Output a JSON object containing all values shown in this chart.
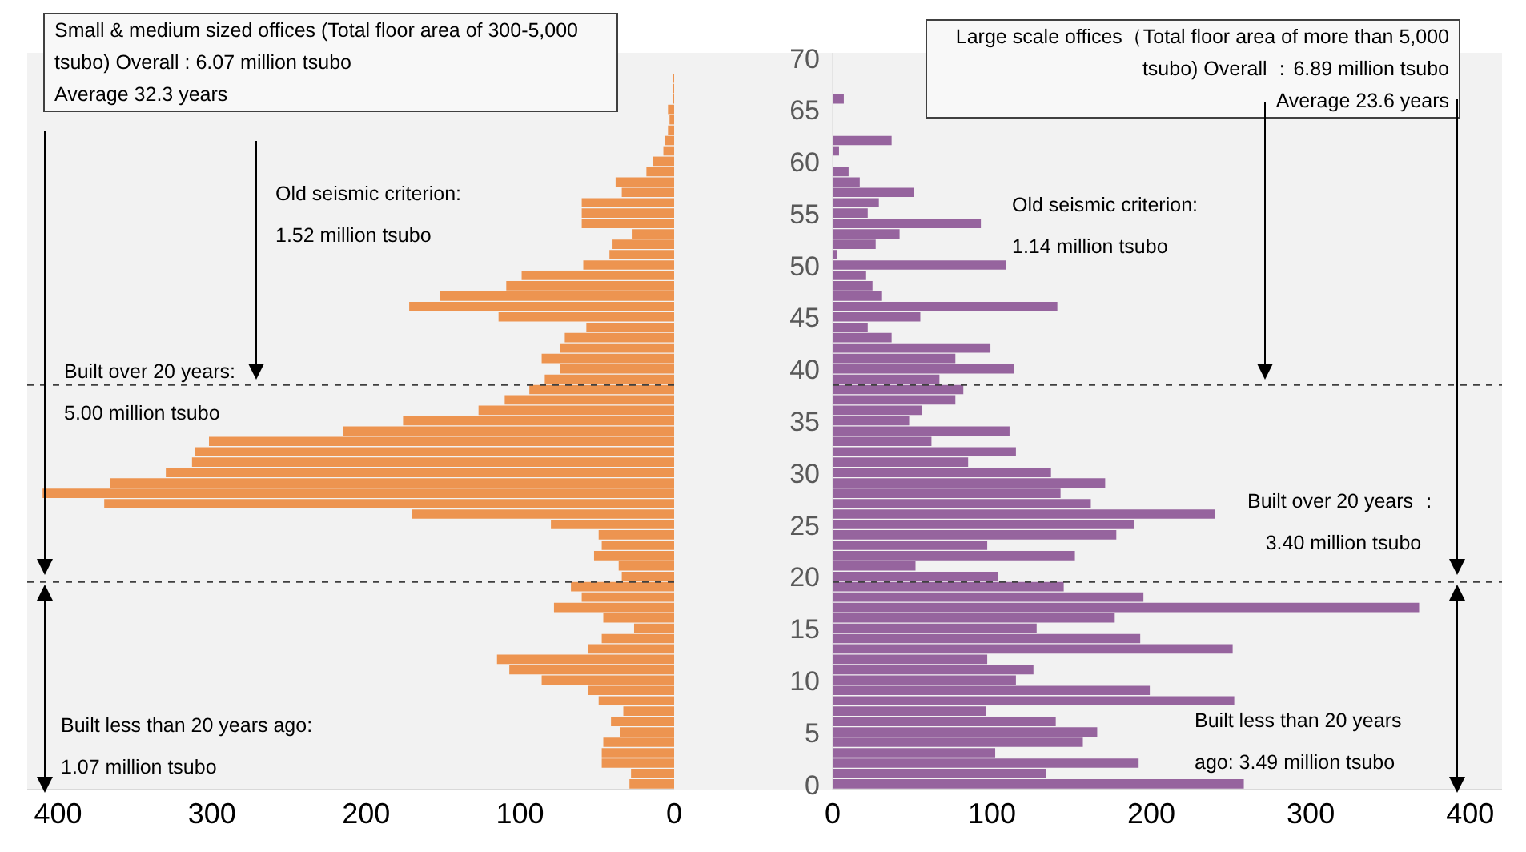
{
  "chart_data": [
    {
      "type": "bar",
      "orientation": "horizontal",
      "title": "Small & medium sized offices (Total floor area of 300-5,000 tsubo) Overall : 6.07 million tsubo",
      "subtitle": "Average 32.3 years",
      "x": [
        0,
        1,
        2,
        3,
        4,
        5,
        6,
        7,
        8,
        9,
        10,
        11,
        12,
        13,
        14,
        15,
        16,
        17,
        18,
        19,
        20,
        21,
        22,
        23,
        24,
        25,
        26,
        27,
        28,
        29,
        30,
        31,
        32,
        33,
        34,
        35,
        36,
        37,
        38,
        39,
        40,
        41,
        42,
        43,
        44,
        45,
        46,
        47,
        48,
        49,
        50,
        51,
        52,
        53,
        54,
        55,
        56,
        57,
        58,
        59,
        60,
        61,
        62,
        63,
        64,
        65,
        66,
        67,
        68,
        69,
        70
      ],
      "series": [
        {
          "color": "#ed9450",
          "values": [
            29,
            28,
            47,
            47,
            46,
            35,
            41,
            33,
            49,
            56,
            86,
            107,
            115,
            56,
            47,
            26,
            46,
            78,
            60,
            67,
            34,
            36,
            52,
            47,
            49,
            80,
            170,
            370,
            410,
            366,
            330,
            313,
            311,
            302,
            215,
            176,
            127,
            110,
            94,
            84,
            74,
            86,
            74,
            71,
            57,
            114,
            172,
            152,
            109,
            99,
            59,
            42,
            40,
            27,
            60,
            60,
            60,
            34,
            38,
            18,
            14,
            7,
            6,
            4,
            3,
            4,
            1,
            1,
            1,
            0,
            0
          ]
        }
      ],
      "xlim": [
        420,
        0
      ],
      "xticks": [
        0,
        100,
        200,
        300,
        400
      ],
      "ylim": [
        -0.5,
        70.5
      ],
      "yticks": [
        0,
        5,
        10,
        15,
        20,
        25,
        30,
        35,
        40,
        45,
        50,
        55,
        60,
        65,
        70
      ],
      "tick_labels": "x",
      "ref_lines": [
        {
          "axis": "y",
          "value": 38.5,
          "color": "#404040",
          "line_style": "dashed"
        },
        {
          "axis": "y",
          "value": 19.5,
          "color": "#404040",
          "line_style": "dashed"
        }
      ],
      "annotations": [
        "Old seismic criterion: 1.52 million tsubo",
        "Built over 20 years: 5.00 million tsubo",
        "Built less than 20 years ago: 1.07 million tsubo"
      ]
    },
    {
      "type": "bar",
      "orientation": "horizontal",
      "title": "Large scale offices（Total floor area of more than 5,000 tsubo) Overall ：6.89 million tsubo",
      "subtitle": "Average 23.6 years",
      "x": [
        0,
        1,
        2,
        3,
        4,
        5,
        6,
        7,
        8,
        9,
        10,
        11,
        12,
        13,
        14,
        15,
        16,
        17,
        18,
        19,
        20,
        21,
        22,
        23,
        24,
        25,
        26,
        27,
        28,
        29,
        30,
        31,
        32,
        33,
        34,
        35,
        36,
        37,
        38,
        39,
        40,
        41,
        42,
        43,
        44,
        45,
        46,
        47,
        48,
        49,
        50,
        51,
        52,
        53,
        54,
        55,
        56,
        57,
        58,
        59,
        60,
        61,
        62,
        63,
        64,
        65,
        66,
        67,
        68,
        69,
        70
      ],
      "series": [
        {
          "color": "#96649e",
          "values": [
            258,
            134,
            192,
            102,
            157,
            166,
            140,
            96,
            252,
            199,
            115,
            126,
            97,
            251,
            193,
            128,
            177,
            368,
            195,
            145,
            104,
            52,
            152,
            97,
            178,
            189,
            240,
            162,
            143,
            171,
            137,
            85,
            115,
            62,
            111,
            48,
            56,
            77,
            82,
            67,
            114,
            77,
            99,
            37,
            22,
            55,
            141,
            31,
            25,
            21,
            109,
            3,
            27,
            42,
            93,
            22,
            29,
            51,
            17,
            10,
            0,
            4,
            37,
            0,
            0,
            0,
            7,
            0,
            0,
            0,
            0
          ]
        }
      ],
      "xlim": [
        0,
        420
      ],
      "xticks": [
        0,
        100,
        200,
        300,
        400
      ],
      "ylim": [
        -0.5,
        70.5
      ],
      "yticks": [
        0,
        5,
        10,
        15,
        20,
        25,
        30,
        35,
        40,
        45,
        50,
        55,
        60,
        65,
        70
      ],
      "ref_lines": [
        {
          "axis": "y",
          "value": 38.5,
          "color": "#404040",
          "line_style": "dashed"
        },
        {
          "axis": "y",
          "value": 19.5,
          "color": "#404040",
          "line_style": "dashed"
        }
      ],
      "annotations": [
        "Old seismic criterion: 1.14 million tsubo",
        "Built over 20 years ： 3.40 million tsubo",
        "Built less than 20 years ago: 3.49 million tsubo"
      ]
    }
  ]
}
